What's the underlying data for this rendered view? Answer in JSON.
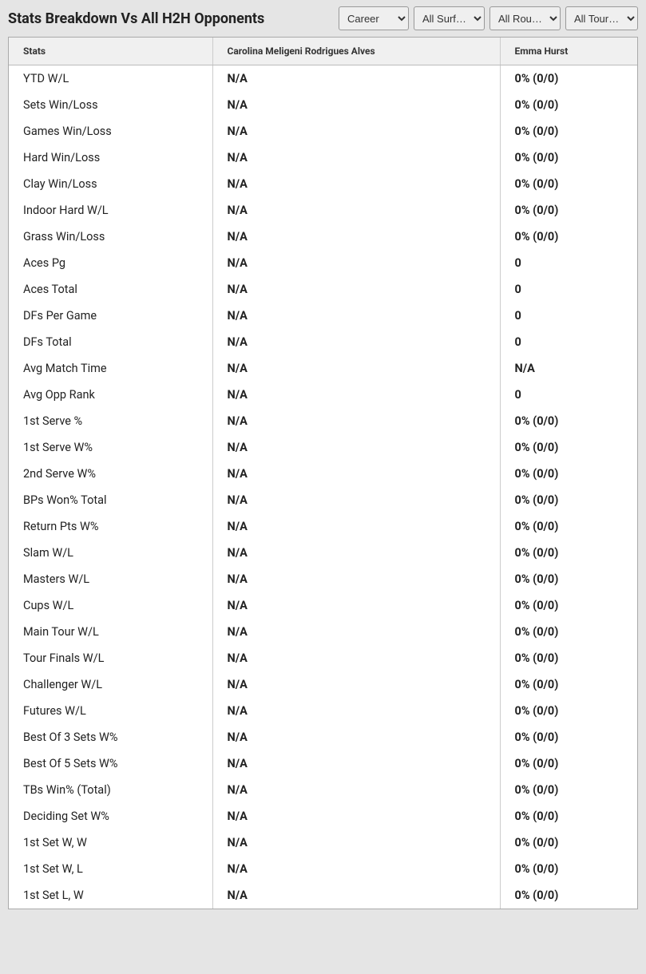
{
  "title": "Stats Breakdown Vs All H2H Opponents",
  "filters": {
    "time": {
      "selected": "Career",
      "options": [
        "Career"
      ]
    },
    "surface": {
      "selected": "All Surf…",
      "options": [
        "All Surf…"
      ]
    },
    "round": {
      "selected": "All Rou…",
      "options": [
        "All Rou…"
      ]
    },
    "tour": {
      "selected": "All Tour…",
      "options": [
        "All Tour…"
      ]
    }
  },
  "columns": {
    "stats": "Stats",
    "player1": "Carolina Meligeni Rodrigues Alves",
    "player2": "Emma Hurst"
  },
  "rows": [
    {
      "stat": "YTD W/L",
      "p1": "N/A",
      "p2": "0% (0/0)"
    },
    {
      "stat": "Sets Win/Loss",
      "p1": "N/A",
      "p2": "0% (0/0)"
    },
    {
      "stat": "Games Win/Loss",
      "p1": "N/A",
      "p2": "0% (0/0)"
    },
    {
      "stat": "Hard Win/Loss",
      "p1": "N/A",
      "p2": "0% (0/0)"
    },
    {
      "stat": "Clay Win/Loss",
      "p1": "N/A",
      "p2": "0% (0/0)"
    },
    {
      "stat": "Indoor Hard W/L",
      "p1": "N/A",
      "p2": "0% (0/0)"
    },
    {
      "stat": "Grass Win/Loss",
      "p1": "N/A",
      "p2": "0% (0/0)"
    },
    {
      "stat": "Aces Pg",
      "p1": "N/A",
      "p2": "0"
    },
    {
      "stat": "Aces Total",
      "p1": "N/A",
      "p2": "0"
    },
    {
      "stat": "DFs Per Game",
      "p1": "N/A",
      "p2": "0"
    },
    {
      "stat": "DFs Total",
      "p1": "N/A",
      "p2": "0"
    },
    {
      "stat": "Avg Match Time",
      "p1": "N/A",
      "p2": "N/A"
    },
    {
      "stat": "Avg Opp Rank",
      "p1": "N/A",
      "p2": "0"
    },
    {
      "stat": "1st Serve %",
      "p1": "N/A",
      "p2": "0% (0/0)"
    },
    {
      "stat": "1st Serve W%",
      "p1": "N/A",
      "p2": "0% (0/0)"
    },
    {
      "stat": "2nd Serve W%",
      "p1": "N/A",
      "p2": "0% (0/0)"
    },
    {
      "stat": "BPs Won% Total",
      "p1": "N/A",
      "p2": "0% (0/0)"
    },
    {
      "stat": "Return Pts W%",
      "p1": "N/A",
      "p2": "0% (0/0)"
    },
    {
      "stat": "Slam W/L",
      "p1": "N/A",
      "p2": "0% (0/0)"
    },
    {
      "stat": "Masters W/L",
      "p1": "N/A",
      "p2": "0% (0/0)"
    },
    {
      "stat": "Cups W/L",
      "p1": "N/A",
      "p2": "0% (0/0)"
    },
    {
      "stat": "Main Tour W/L",
      "p1": "N/A",
      "p2": "0% (0/0)"
    },
    {
      "stat": "Tour Finals W/L",
      "p1": "N/A",
      "p2": "0% (0/0)"
    },
    {
      "stat": "Challenger W/L",
      "p1": "N/A",
      "p2": "0% (0/0)"
    },
    {
      "stat": "Futures W/L",
      "p1": "N/A",
      "p2": "0% (0/0)"
    },
    {
      "stat": "Best Of 3 Sets W%",
      "p1": "N/A",
      "p2": "0% (0/0)"
    },
    {
      "stat": "Best Of 5 Sets W%",
      "p1": "N/A",
      "p2": "0% (0/0)"
    },
    {
      "stat": "TBs Win% (Total)",
      "p1": "N/A",
      "p2": "0% (0/0)"
    },
    {
      "stat": "Deciding Set W%",
      "p1": "N/A",
      "p2": "0% (0/0)"
    },
    {
      "stat": "1st Set W, W",
      "p1": "N/A",
      "p2": "0% (0/0)"
    },
    {
      "stat": "1st Set W, L",
      "p1": "N/A",
      "p2": "0% (0/0)"
    },
    {
      "stat": "1st Set L, W",
      "p1": "N/A",
      "p2": "0% (0/0)"
    }
  ]
}
